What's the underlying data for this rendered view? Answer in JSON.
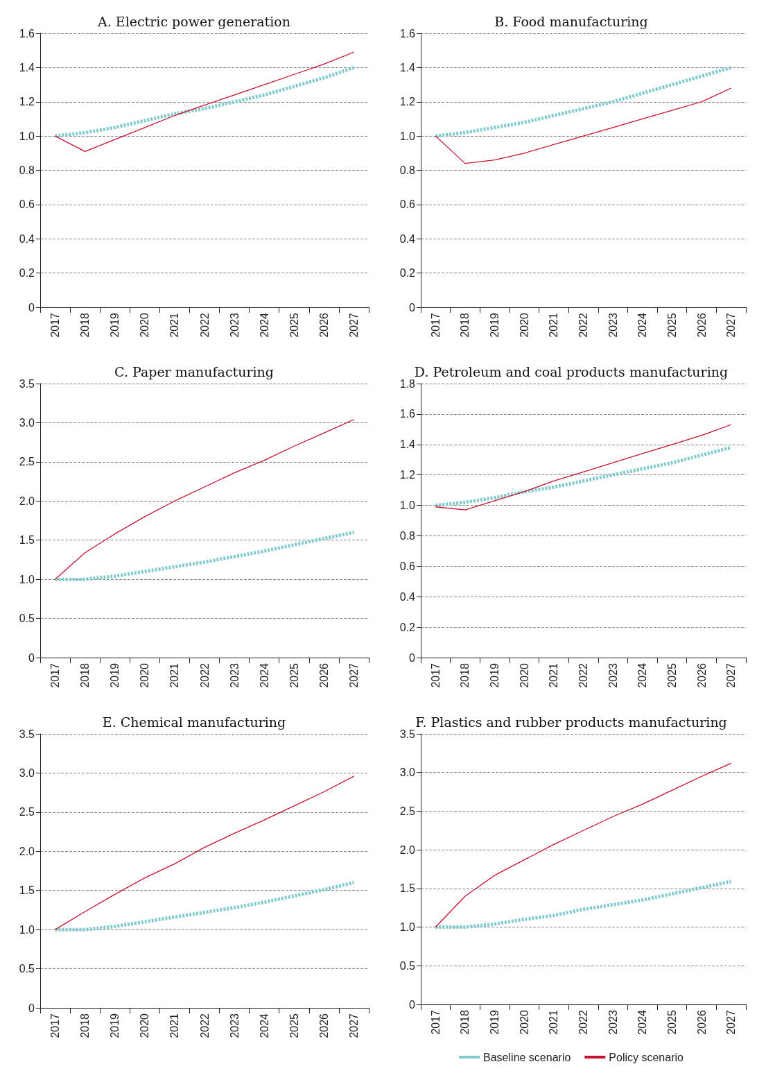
{
  "chart_data": [
    {
      "type": "line",
      "title": "A. Electric power generation",
      "categories": [
        "2017",
        "2018",
        "2019",
        "2020",
        "2021",
        "2022",
        "2023",
        "2024",
        "2025",
        "2026",
        "2027"
      ],
      "ylim": [
        0,
        1.6
      ],
      "yticks": [
        0,
        0.2,
        0.4,
        0.6,
        0.8,
        {
          "value": 1,
          "label": "1.0"
        },
        1.2,
        1.4,
        1.6
      ],
      "grid": "y",
      "marker": "none",
      "series": [
        {
          "color": "#7fcbcf",
          "line_style": "dotted",
          "values": [
            1.0,
            1.02,
            1.05,
            1.09,
            1.13,
            1.16,
            1.2,
            1.24,
            1.29,
            1.34,
            1.4
          ]
        },
        {
          "color": "#c8102e",
          "line_style": "solid",
          "values": [
            1.0,
            0.91,
            0.98,
            1.05,
            1.12,
            1.18,
            1.24,
            1.3,
            1.36,
            1.42,
            1.49
          ]
        }
      ]
    },
    {
      "type": "line",
      "title": "B. Food manufacturing",
      "categories": [
        "2017",
        "2018",
        "2019",
        "2020",
        "2021",
        "2022",
        "2023",
        "2024",
        "2025",
        "2026",
        "2027"
      ],
      "ylim": [
        0,
        1.6
      ],
      "yticks": [
        0,
        0.2,
        0.4,
        0.6,
        0.8,
        {
          "value": 1,
          "label": "1.0"
        },
        1.2,
        1.4,
        1.6
      ],
      "grid": "y",
      "marker": "none",
      "series": [
        {
          "color": "#7fcbcf",
          "line_style": "dotted",
          "values": [
            1.0,
            1.02,
            1.05,
            1.08,
            1.12,
            1.16,
            1.2,
            1.25,
            1.3,
            1.35,
            1.4
          ]
        },
        {
          "color": "#c8102e",
          "line_style": "solid",
          "values": [
            1.0,
            0.84,
            0.86,
            0.9,
            0.95,
            1.0,
            1.05,
            1.1,
            1.15,
            1.2,
            1.28
          ]
        }
      ]
    },
    {
      "type": "line",
      "title": "C. Paper manufacturing",
      "categories": [
        "2017",
        "2018",
        "2019",
        "2020",
        "2021",
        "2022",
        "2023",
        "2024",
        "2025",
        "2026",
        "2027"
      ],
      "ylim": [
        0,
        3.5
      ],
      "yticks": [
        0,
        0.5,
        {
          "value": 1,
          "label": "1.0"
        },
        1.5,
        {
          "value": 2,
          "label": "2.0"
        },
        2.5,
        {
          "value": 3,
          "label": "3.0"
        },
        3.5
      ],
      "grid": "y",
      "marker": "none",
      "series": [
        {
          "color": "#7fcbcf",
          "line_style": "dotted",
          "values": [
            1.0,
            1.0,
            1.04,
            1.1,
            1.16,
            1.22,
            1.29,
            1.36,
            1.44,
            1.52,
            1.6
          ]
        },
        {
          "color": "#c8102e",
          "line_style": "solid",
          "values": [
            1.0,
            1.34,
            1.58,
            1.8,
            2.0,
            2.18,
            2.36,
            2.52,
            2.7,
            2.87,
            3.04
          ]
        }
      ]
    },
    {
      "type": "line",
      "title": "D. Petroleum and coal products manufacturing",
      "categories": [
        "2017",
        "2018",
        "2019",
        "2020",
        "2021",
        "2022",
        "2023",
        "2024",
        "2025",
        "2026",
        "2027"
      ],
      "ylim": [
        0,
        1.8
      ],
      "yticks": [
        0,
        0.2,
        0.4,
        0.6,
        0.8,
        {
          "value": 1,
          "label": "1.0"
        },
        1.2,
        1.4,
        1.6,
        1.8
      ],
      "grid": "y",
      "marker": "none",
      "series": [
        {
          "color": "#7fcbcf",
          "line_style": "dotted",
          "values": [
            1.0,
            1.02,
            1.05,
            1.09,
            1.12,
            1.16,
            1.2,
            1.24,
            1.28,
            1.33,
            1.38
          ]
        },
        {
          "color": "#c8102e",
          "line_style": "solid",
          "values": [
            0.99,
            0.97,
            1.03,
            1.09,
            1.16,
            1.22,
            1.28,
            1.34,
            1.4,
            1.46,
            1.53
          ]
        }
      ]
    },
    {
      "type": "line",
      "title": "E. Chemical manufacturing",
      "categories": [
        "2017",
        "2018",
        "2019",
        "2020",
        "2021",
        "2022",
        "2023",
        "2024",
        "2025",
        "2026",
        "2027"
      ],
      "ylim": [
        0,
        3.5
      ],
      "yticks": [
        0,
        0.5,
        {
          "value": 1,
          "label": "1.0"
        },
        1.5,
        {
          "value": 2,
          "label": "2.0"
        },
        2.5,
        {
          "value": 3,
          "label": "3.0"
        },
        3.5
      ],
      "grid": "y",
      "marker": "none",
      "series": [
        {
          "color": "#7fcbcf",
          "line_style": "dotted",
          "values": [
            1.0,
            1.0,
            1.04,
            1.1,
            1.16,
            1.22,
            1.28,
            1.35,
            1.43,
            1.51,
            1.6
          ]
        },
        {
          "color": "#c8102e",
          "line_style": "solid",
          "values": [
            1.0,
            1.23,
            1.45,
            1.66,
            1.84,
            2.05,
            2.23,
            2.4,
            2.58,
            2.76,
            2.96
          ]
        }
      ]
    },
    {
      "type": "line",
      "title": "F. Plastics and rubber products manufacturing",
      "categories": [
        "2017",
        "2018",
        "2019",
        "2020",
        "2021",
        "2022",
        "2023",
        "2024",
        "2025",
        "2026",
        "2027"
      ],
      "ylim": [
        0,
        3.5
      ],
      "yticks": [
        0,
        0.5,
        {
          "value": 1,
          "label": "1.0"
        },
        1.5,
        {
          "value": 2,
          "label": "2.0"
        },
        2.5,
        {
          "value": 3,
          "label": "3.0"
        },
        3.5
      ],
      "grid": "y",
      "marker": "none",
      "legend": "bottom",
      "series": [
        {
          "name": "Baseline scenario",
          "color": "#7fcbcf",
          "line_style": "dotted",
          "values": [
            1.0,
            1.0,
            1.04,
            1.1,
            1.15,
            1.23,
            1.29,
            1.35,
            1.43,
            1.51,
            1.59
          ]
        },
        {
          "name": "Policy scenario",
          "color": "#c8102e",
          "line_style": "solid",
          "values": [
            1.0,
            1.4,
            1.67,
            1.87,
            2.07,
            2.25,
            2.43,
            2.59,
            2.77,
            2.95,
            3.12
          ]
        }
      ]
    }
  ]
}
